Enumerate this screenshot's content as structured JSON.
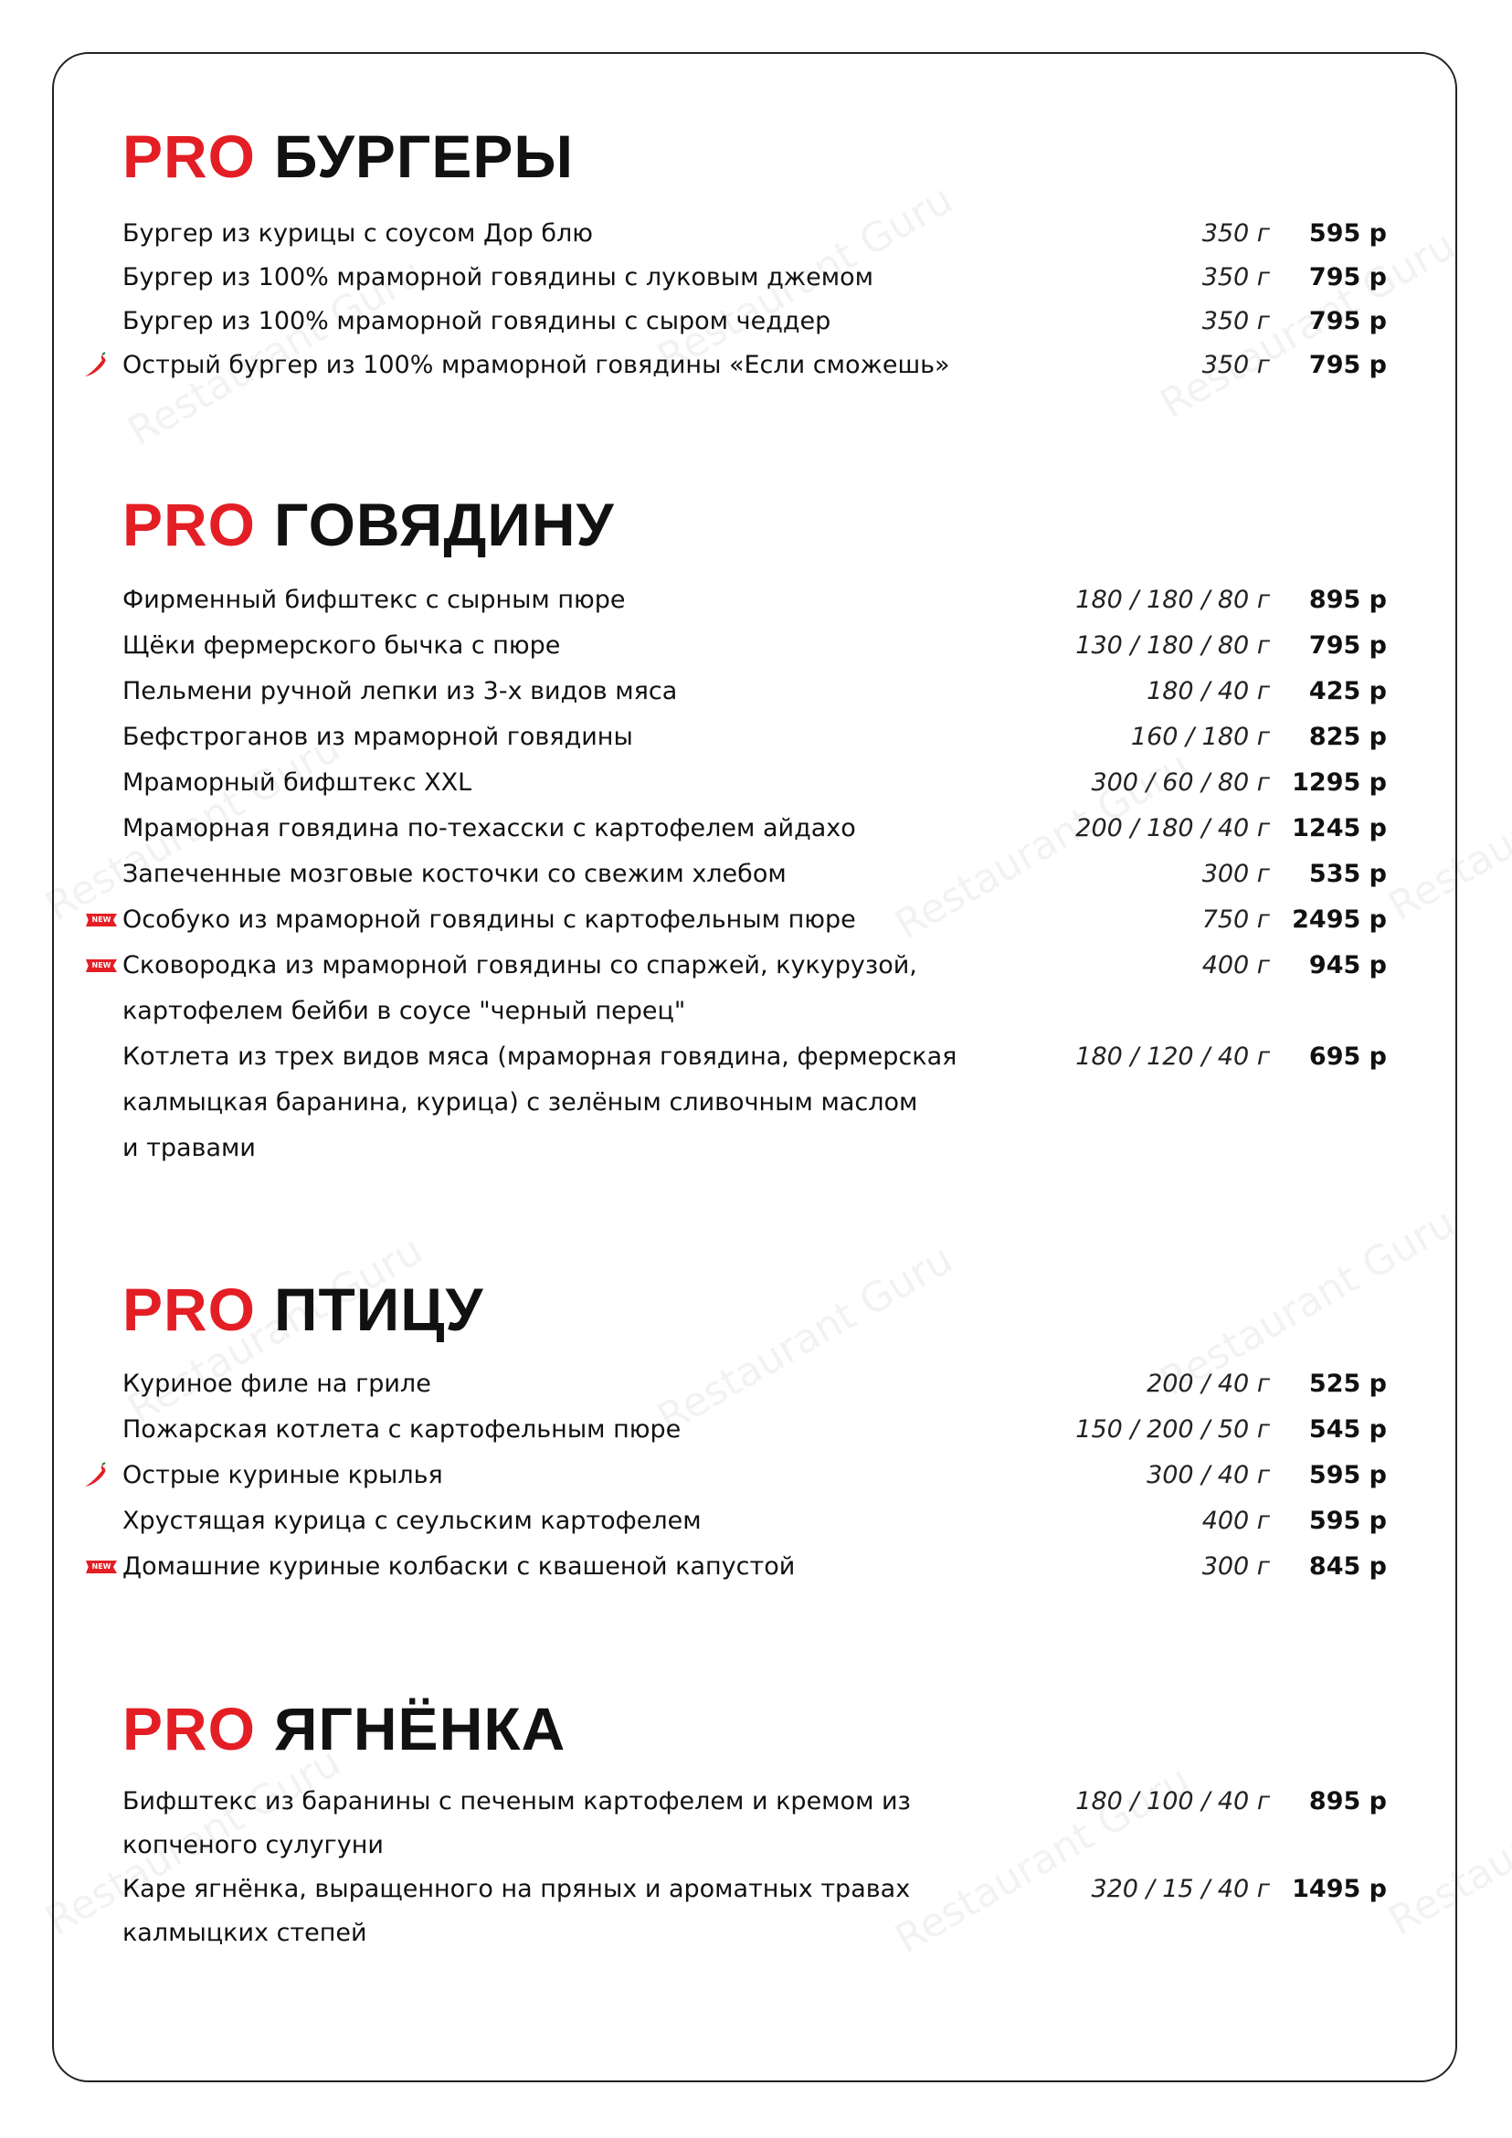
{
  "watermark": "Restaurant Guru",
  "colors": {
    "accent": "#e31e24",
    "text": "#111111"
  },
  "badges": {
    "new": "NEW"
  },
  "sections": [
    {
      "prefix": "PRO",
      "title": "БУРГЕРЫ",
      "items": [
        {
          "lines": [
            "Бургер из курицы с соусом Дор блю"
          ],
          "weight": "350 г",
          "price": "595 р",
          "icon": null
        },
        {
          "lines": [
            "Бургер из 100% мраморной говядины с луковым джемом"
          ],
          "weight": "350 г",
          "price": "795 р",
          "icon": null
        },
        {
          "lines": [
            "Бургер из 100% мраморной говядины с сыром чеддер"
          ],
          "weight": "350 г",
          "price": "795 р",
          "icon": null
        },
        {
          "lines": [
            "Острый бургер из 100% мраморной говядины «Если сможешь»"
          ],
          "weight": "350 г",
          "price": "795 р",
          "icon": "chili-pepper-icon"
        }
      ]
    },
    {
      "prefix": "PRO",
      "title": "ГОВЯДИНУ",
      "items": [
        {
          "lines": [
            "Фирменный бифштекс с сырным пюре"
          ],
          "weight": "180 / 180 / 80 г",
          "price": "895 р",
          "icon": null
        },
        {
          "lines": [
            "Щёки фермерского бычка с пюре"
          ],
          "weight": "130 / 180 / 80 г",
          "price": "795 р",
          "icon": null
        },
        {
          "lines": [
            "Пельмени ручной лепки из 3-х видов мяса"
          ],
          "weight": "180 / 40 г",
          "price": "425 р",
          "icon": null
        },
        {
          "lines": [
            "Бефстроганов из мраморной говядины"
          ],
          "weight": "160 / 180 г",
          "price": "825 р",
          "icon": null
        },
        {
          "lines": [
            "Мраморный бифштекс XXL"
          ],
          "weight": "300 / 60 / 80 г",
          "price": "1295 р",
          "icon": null
        },
        {
          "lines": [
            "Мраморная говядина по-техасски с картофелем айдахо"
          ],
          "weight": "200 / 180 / 40 г",
          "price": "1245 р",
          "icon": null
        },
        {
          "lines": [
            "Запеченные мозговые косточки со свежим хлебом"
          ],
          "weight": "300 г",
          "price": "535 р",
          "icon": null
        },
        {
          "lines": [
            "Особуко из мраморной говядины с картофельным пюре"
          ],
          "weight": "750 г",
          "price": "2495 р",
          "icon": "new-badge-icon"
        },
        {
          "lines": [
            "Сковородка из мраморной говядины со спаржей, кукурузой,",
            "картофелем бейби в соусе \"черный перец\""
          ],
          "weight": "400 г",
          "price": "945 р",
          "icon": "new-badge-icon"
        },
        {
          "lines": [
            "Котлета из трех видов мяса (мраморная говядина, фермерская",
            "калмыцкая баранина, курица) с зелёным сливочным маслом",
            "и травами"
          ],
          "weight": "180 / 120 / 40 г",
          "price": "695 р",
          "icon": null
        }
      ]
    },
    {
      "prefix": "PRO",
      "title": "ПТИЦУ",
      "items": [
        {
          "lines": [
            "Куриное филе на гриле"
          ],
          "weight": "200 / 40 г",
          "price": "525 р",
          "icon": null
        },
        {
          "lines": [
            "Пожарская котлета с картофельным пюре"
          ],
          "weight": "150 / 200 / 50 г",
          "price": "545 р",
          "icon": null
        },
        {
          "lines": [
            "Острые куриные крылья"
          ],
          "weight": "300 / 40 г",
          "price": "595 р",
          "icon": "chili-pepper-icon"
        },
        {
          "lines": [
            "Хрустящая курица с сеульским картофелем"
          ],
          "weight": "400 г",
          "price": "595 р",
          "icon": null
        },
        {
          "lines": [
            "Домашние куриные колбаски с квашеной капустой"
          ],
          "weight": "300 г",
          "price": "845 р",
          "icon": "new-badge-icon"
        }
      ]
    },
    {
      "prefix": "PRO",
      "title": "ЯГНЁНКА",
      "items": [
        {
          "lines": [
            "Бифштекс из баранины с печеным картофелем и кремом из",
            "копченого сулугуни"
          ],
          "weight": "180 / 100 / 40 г",
          "price": "895 р",
          "icon": null
        },
        {
          "lines": [
            "Каре ягнёнка, выращенного на пряных и ароматных травах",
            "калмыцких степей"
          ],
          "weight": "320 / 15 / 40 г",
          "price": "1495 р",
          "icon": null
        }
      ]
    }
  ]
}
